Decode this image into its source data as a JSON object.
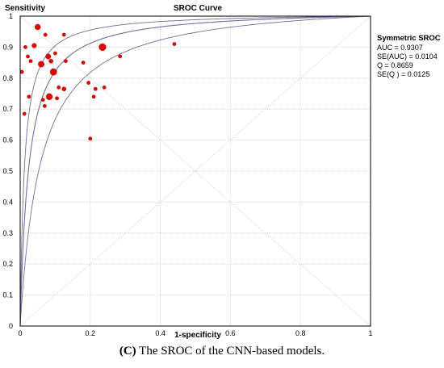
{
  "chart_data": {
    "type": "scatter",
    "title": "SROC Curve",
    "ylabel": "Sensitivity",
    "xlabel": "1-specificity",
    "xlim": [
      0,
      1
    ],
    "ylim": [
      0,
      1
    ],
    "x_ticks": [
      "0",
      "0.2",
      "0.4",
      "0.6",
      "0.8",
      "1"
    ],
    "y_ticks": [
      "0",
      "0.1",
      "0.2",
      "0.3",
      "0.4",
      "0.5",
      "0.6",
      "0.7",
      "0.8",
      "0.9",
      "1"
    ],
    "grid": true,
    "studies": [
      {
        "x": 0.005,
        "y": 0.82,
        "w": 1
      },
      {
        "x": 0.012,
        "y": 0.685,
        "w": 1
      },
      {
        "x": 0.015,
        "y": 0.9,
        "w": 1
      },
      {
        "x": 0.022,
        "y": 0.87,
        "w": 1
      },
      {
        "x": 0.025,
        "y": 0.74,
        "w": 1
      },
      {
        "x": 0.03,
        "y": 0.855,
        "w": 1
      },
      {
        "x": 0.04,
        "y": 0.905,
        "w": 1.3
      },
      {
        "x": 0.05,
        "y": 0.965,
        "w": 1.6
      },
      {
        "x": 0.06,
        "y": 0.845,
        "w": 1.7
      },
      {
        "x": 0.065,
        "y": 0.73,
        "w": 1
      },
      {
        "x": 0.07,
        "y": 0.71,
        "w": 1
      },
      {
        "x": 0.072,
        "y": 0.94,
        "w": 1
      },
      {
        "x": 0.08,
        "y": 0.87,
        "w": 1.5
      },
      {
        "x": 0.083,
        "y": 0.74,
        "w": 1.8
      },
      {
        "x": 0.088,
        "y": 0.855,
        "w": 1.2
      },
      {
        "x": 0.095,
        "y": 0.82,
        "w": 1.9
      },
      {
        "x": 0.1,
        "y": 0.88,
        "w": 1
      },
      {
        "x": 0.105,
        "y": 0.735,
        "w": 1
      },
      {
        "x": 0.11,
        "y": 0.77,
        "w": 1
      },
      {
        "x": 0.125,
        "y": 0.94,
        "w": 1
      },
      {
        "x": 0.125,
        "y": 0.765,
        "w": 1.2
      },
      {
        "x": 0.13,
        "y": 0.855,
        "w": 1
      },
      {
        "x": 0.18,
        "y": 0.85,
        "w": 1
      },
      {
        "x": 0.195,
        "y": 0.785,
        "w": 1
      },
      {
        "x": 0.2,
        "y": 0.605,
        "w": 1
      },
      {
        "x": 0.21,
        "y": 0.74,
        "w": 1
      },
      {
        "x": 0.215,
        "y": 0.765,
        "w": 1
      },
      {
        "x": 0.235,
        "y": 0.9,
        "w": 2.0
      },
      {
        "x": 0.24,
        "y": 0.77,
        "w": 1
      },
      {
        "x": 0.285,
        "y": 0.87,
        "w": 1
      },
      {
        "x": 0.44,
        "y": 0.91,
        "w": 1
      }
    ],
    "sroc_curves": [
      {
        "role": "upper",
        "theta": 18
      },
      {
        "role": "sroc",
        "theta": 41.68
      },
      {
        "role": "lower",
        "theta": 85
      }
    ],
    "legend": {
      "title": "Symmetric SROC",
      "lines": [
        "AUC = 0.9307",
        "SE(AUC) = 0.0104",
        "Q  = 0.8659",
        "SE(Q  ) = 0.0125"
      ]
    },
    "colors": {
      "points": "#dd0000",
      "curves": "#6f6fa0",
      "grid": "#d6d6d6",
      "frame": "#000000"
    }
  },
  "caption": {
    "label": "(C)",
    "text": " The SROC of the CNN-based models."
  }
}
